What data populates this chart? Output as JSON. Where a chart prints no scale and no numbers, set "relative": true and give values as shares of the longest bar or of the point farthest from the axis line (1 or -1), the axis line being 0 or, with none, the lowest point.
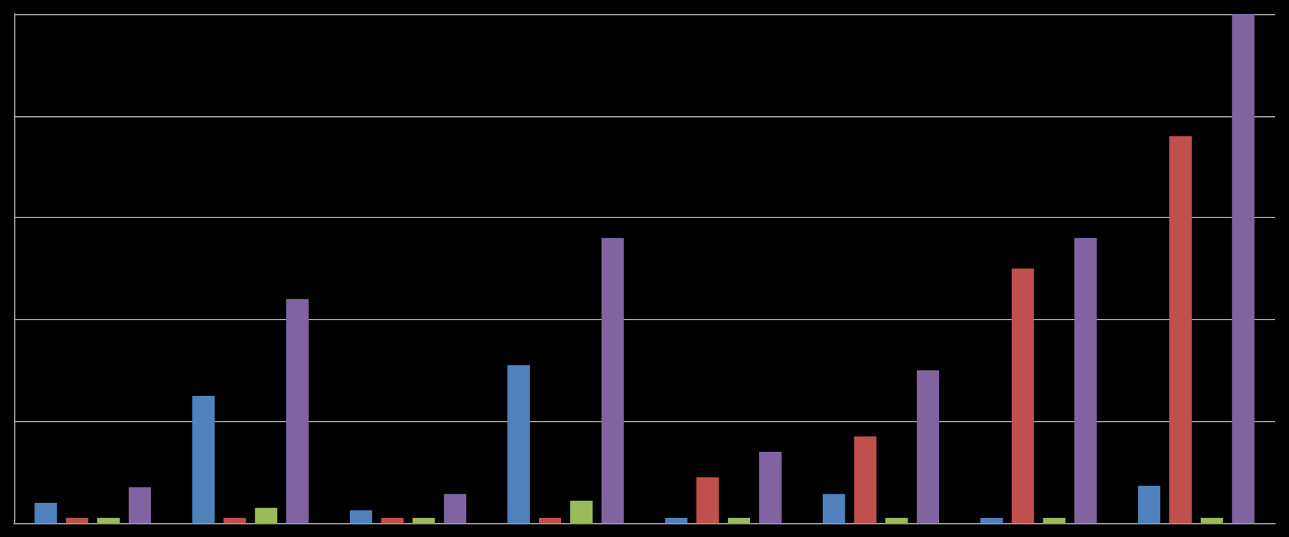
{
  "chart_data": {
    "type": "bar",
    "relative": true,
    "grid": "y",
    "categories": [
      null,
      null,
      null,
      null,
      null,
      null,
      null,
      null
    ],
    "series": [
      {
        "color": "#4f81bd",
        "values": [
          0.04,
          0.25,
          0.025,
          0.31,
          0.01,
          0.057,
          0.01,
          0.073
        ]
      },
      {
        "color": "#c0504d",
        "values": [
          0.01,
          0.01,
          0.01,
          0.01,
          0.09,
          0.17,
          0.5,
          0.76
        ]
      },
      {
        "color": "#9bbb59",
        "values": [
          0.01,
          0.03,
          0.01,
          0.044,
          0.01,
          0.01,
          0.01,
          0.01
        ]
      },
      {
        "color": "#8064a2",
        "values": [
          0.07,
          0.44,
          0.057,
          0.56,
          0.14,
          0.3,
          0.56,
          1
        ]
      }
    ]
  }
}
